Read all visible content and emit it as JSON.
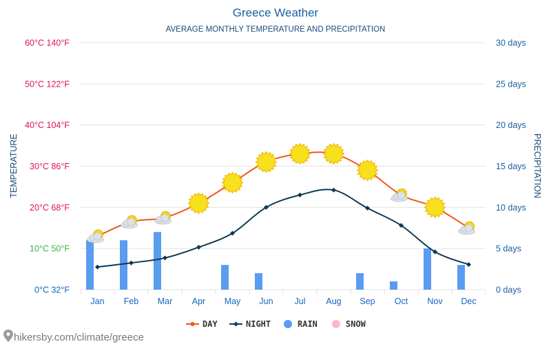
{
  "title": "Greece Weather",
  "subtitle": "AVERAGE MONTHLY TEMPERATURE AND PRECIPITATION",
  "source_text": "hikersby.com/climate/greece",
  "colors": {
    "title": "#1a5f9e",
    "day": "#f0561b",
    "night": "#0d3a56",
    "rain": "#5a9cf0",
    "snow": "#ffb6c8",
    "left_pink": "#e0115f",
    "left_green": "#3cb043",
    "left_blue": "#1565c0",
    "right_axis": "#1a5f9e",
    "month_labels": "#1565c0",
    "grid": "#e3e3e3",
    "sun": "#f7e01d",
    "sun_edge": "#f0b000",
    "cloud": "#dde2e8"
  },
  "chart_data": {
    "type": "line",
    "categories": [
      "Jan",
      "Feb",
      "Mar",
      "Apr",
      "May",
      "Jun",
      "Jul",
      "Aug",
      "Sep",
      "Oct",
      "Nov",
      "Dec"
    ],
    "series": [
      {
        "name": "DAY",
        "values": [
          13,
          16.5,
          17.5,
          21,
          26,
          31,
          33,
          33,
          29,
          23,
          20,
          15
        ],
        "unit": "°C"
      },
      {
        "name": "NIGHT",
        "values": [
          5.5,
          6.5,
          7.7,
          10.3,
          13.7,
          20,
          23,
          24.2,
          19.8,
          15.6,
          9.2,
          6.1
        ],
        "unit": "°C"
      },
      {
        "name": "RAIN",
        "values": [
          6,
          6,
          7,
          0,
          3,
          2,
          0,
          0,
          2,
          1,
          5,
          3
        ],
        "unit": "days"
      },
      {
        "name": "SNOW",
        "values": [
          0,
          0,
          0,
          0,
          0,
          0,
          0,
          0,
          0,
          0,
          0,
          0
        ],
        "unit": "days"
      }
    ],
    "weather_icons": [
      "sun-cloud",
      "sun-cloud",
      "sun-cloud",
      "sun",
      "sun",
      "sun",
      "sun",
      "sun",
      "sun",
      "sun-cloud",
      "sun",
      "sun-cloud"
    ],
    "ylabel_left": "TEMPERATURE",
    "ylabel_right": "PRECIPITATION",
    "ylim_left": [
      0,
      60
    ],
    "ylim_right": [
      0,
      30
    ],
    "left_ticks": [
      {
        "value": 0,
        "label": "0°C 32°F",
        "color": "left_blue"
      },
      {
        "value": 10,
        "label": "10°C 50°F",
        "color": "left_green"
      },
      {
        "value": 20,
        "label": "20°C 68°F",
        "color": "left_pink"
      },
      {
        "value": 30,
        "label": "30°C 86°F",
        "color": "left_pink"
      },
      {
        "value": 40,
        "label": "40°C 104°F",
        "color": "left_pink"
      },
      {
        "value": 50,
        "label": "50°C 122°F",
        "color": "left_pink"
      },
      {
        "value": 60,
        "label": "60°C 140°F",
        "color": "left_pink"
      }
    ],
    "right_ticks": [
      {
        "value": 0,
        "label": "0 days"
      },
      {
        "value": 5,
        "label": "5 days"
      },
      {
        "value": 10,
        "label": "10 days"
      },
      {
        "value": 15,
        "label": "15 days"
      },
      {
        "value": 20,
        "label": "20 days"
      },
      {
        "value": 25,
        "label": "25 days"
      },
      {
        "value": 30,
        "label": "30 days"
      }
    ],
    "legend": [
      "DAY",
      "NIGHT",
      "RAIN",
      "SNOW"
    ],
    "legend_position": "bottom-center",
    "grid": true
  }
}
